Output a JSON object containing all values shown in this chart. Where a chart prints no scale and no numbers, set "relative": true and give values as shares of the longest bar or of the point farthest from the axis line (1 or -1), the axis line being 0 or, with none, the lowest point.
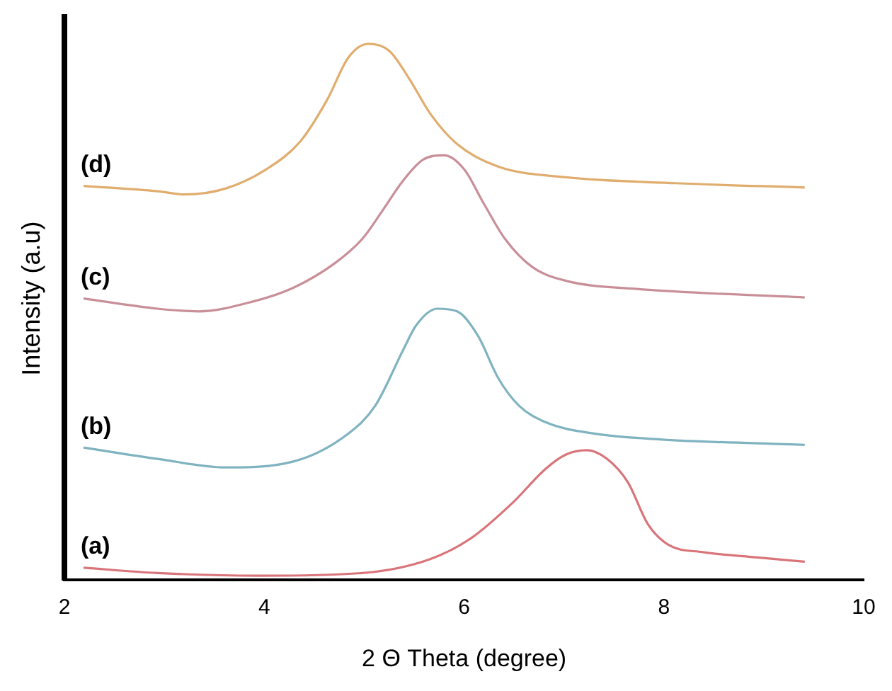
{
  "chart_data": {
    "type": "line",
    "xlabel": "2 Θ Theta (degree)",
    "ylabel": "Intensity (a.u)",
    "relative": true,
    "xlim": [
      2,
      10
    ],
    "xticks": [
      2,
      4,
      6,
      8,
      10
    ],
    "grid": false,
    "legend": false,
    "marker": "none",
    "line_style": "solid",
    "series": [
      {
        "name": "(a)",
        "color": "#d9757a",
        "x": [
          2.19,
          2.93,
          3.95,
          4.98,
          5.66,
          6.07,
          6.48,
          6.82,
          7.02,
          7.23,
          7.43,
          7.64,
          7.84,
          8.05,
          8.39,
          8.94,
          9.41
        ],
        "values": [
          0.023,
          0.013,
          0.008,
          0.013,
          0.039,
          0.078,
          0.143,
          0.208,
          0.234,
          0.242,
          0.226,
          0.182,
          0.104,
          0.065,
          0.052,
          0.042,
          0.034
        ]
      },
      {
        "name": "(b)",
        "color": "#7fb3c0",
        "x": [
          2.19,
          2.93,
          3.61,
          4.29,
          4.84,
          5.11,
          5.39,
          5.52,
          5.73,
          5.93,
          6.14,
          6.34,
          6.55,
          6.82,
          7.3,
          7.98,
          9.41
        ],
        "values": [
          0.247,
          0.226,
          0.21,
          0.221,
          0.273,
          0.325,
          0.429,
          0.475,
          0.506,
          0.501,
          0.455,
          0.377,
          0.325,
          0.294,
          0.273,
          0.262,
          0.252
        ]
      },
      {
        "name": "(c)",
        "color": "#c98f98",
        "x": [
          2.19,
          2.93,
          3.34,
          3.88,
          4.29,
          4.7,
          4.98,
          5.18,
          5.39,
          5.59,
          5.8,
          6.0,
          6.2,
          6.41,
          6.68,
          7.02,
          7.71,
          9.41
        ],
        "values": [
          0.525,
          0.506,
          0.501,
          0.519,
          0.545,
          0.59,
          0.636,
          0.688,
          0.745,
          0.784,
          0.792,
          0.766,
          0.701,
          0.636,
          0.584,
          0.558,
          0.543,
          0.527
        ]
      },
      {
        "name": "(d)",
        "color": "#e0ad6e",
        "x": [
          2.19,
          2.93,
          3.2,
          3.61,
          4.02,
          4.36,
          4.63,
          4.84,
          5.04,
          5.25,
          5.45,
          5.66,
          5.93,
          6.34,
          7.02,
          8.12,
          9.41
        ],
        "values": [
          0.735,
          0.725,
          0.719,
          0.73,
          0.766,
          0.818,
          0.896,
          0.974,
          1.0,
          0.987,
          0.935,
          0.87,
          0.813,
          0.771,
          0.751,
          0.74,
          0.732
        ]
      }
    ]
  }
}
